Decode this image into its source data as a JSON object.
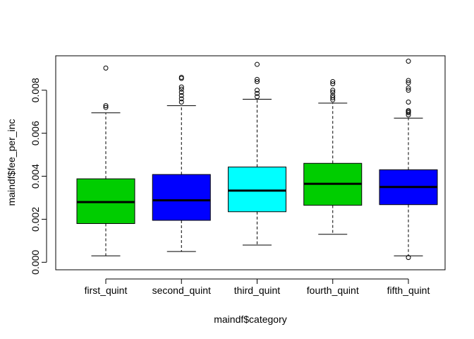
{
  "chart_data": {
    "type": "boxplot",
    "xlabel": "maindf$category",
    "ylabel": "maindf$fee_per_inc",
    "ylim": [
      -0.00035,
      0.0096
    ],
    "y_ticks": [
      {
        "value": 0.0,
        "label": "0.000"
      },
      {
        "value": 0.002,
        "label": "0.002"
      },
      {
        "value": 0.004,
        "label": "0.004"
      },
      {
        "value": 0.006,
        "label": "0.006"
      },
      {
        "value": 0.008,
        "label": "0.008"
      }
    ],
    "categories": [
      "first_quint",
      "second_quint",
      "third_quint",
      "fourth_quint",
      "fifth_quint"
    ],
    "boxes": [
      {
        "category": "first_quint",
        "color": "#00CD00",
        "whisker_low": 0.0003,
        "q1": 0.0018,
        "median": 0.0028,
        "q3": 0.00388,
        "whisker_high": 0.00695,
        "outliers": [
          0.0072,
          0.00728,
          0.00903
        ]
      },
      {
        "category": "second_quint",
        "color": "#0000FF",
        "whisker_low": 0.0005,
        "q1": 0.00195,
        "median": 0.00288,
        "q3": 0.00408,
        "whisker_high": 0.00728,
        "outliers": [
          0.00745,
          0.0076,
          0.00775,
          0.0079,
          0.00805,
          0.00815,
          0.00855,
          0.0086
        ]
      },
      {
        "category": "third_quint",
        "color": "#00FFFF",
        "whisker_low": 0.0008,
        "q1": 0.00235,
        "median": 0.00333,
        "q3": 0.00443,
        "whisker_high": 0.00758,
        "outliers": [
          0.0077,
          0.00785,
          0.008,
          0.0084,
          0.0085,
          0.0092
        ]
      },
      {
        "category": "fourth_quint",
        "color": "#00CD00",
        "whisker_low": 0.0013,
        "q1": 0.00265,
        "median": 0.00365,
        "q3": 0.0046,
        "whisker_high": 0.0074,
        "outliers": [
          0.00755,
          0.00765,
          0.00775,
          0.0079,
          0.008,
          0.0083,
          0.0084
        ]
      },
      {
        "category": "fifth_quint",
        "color": "#0000FF",
        "whisker_low": 0.0003,
        "q1": 0.00268,
        "median": 0.0035,
        "q3": 0.0043,
        "whisker_high": 0.0067,
        "outliers": [
          0.00022,
          0.00685,
          0.00695,
          0.007,
          0.00705,
          0.00745,
          0.008,
          0.0081,
          0.00835,
          0.00845,
          0.00935
        ]
      }
    ],
    "grid": false,
    "legend": "none"
  }
}
